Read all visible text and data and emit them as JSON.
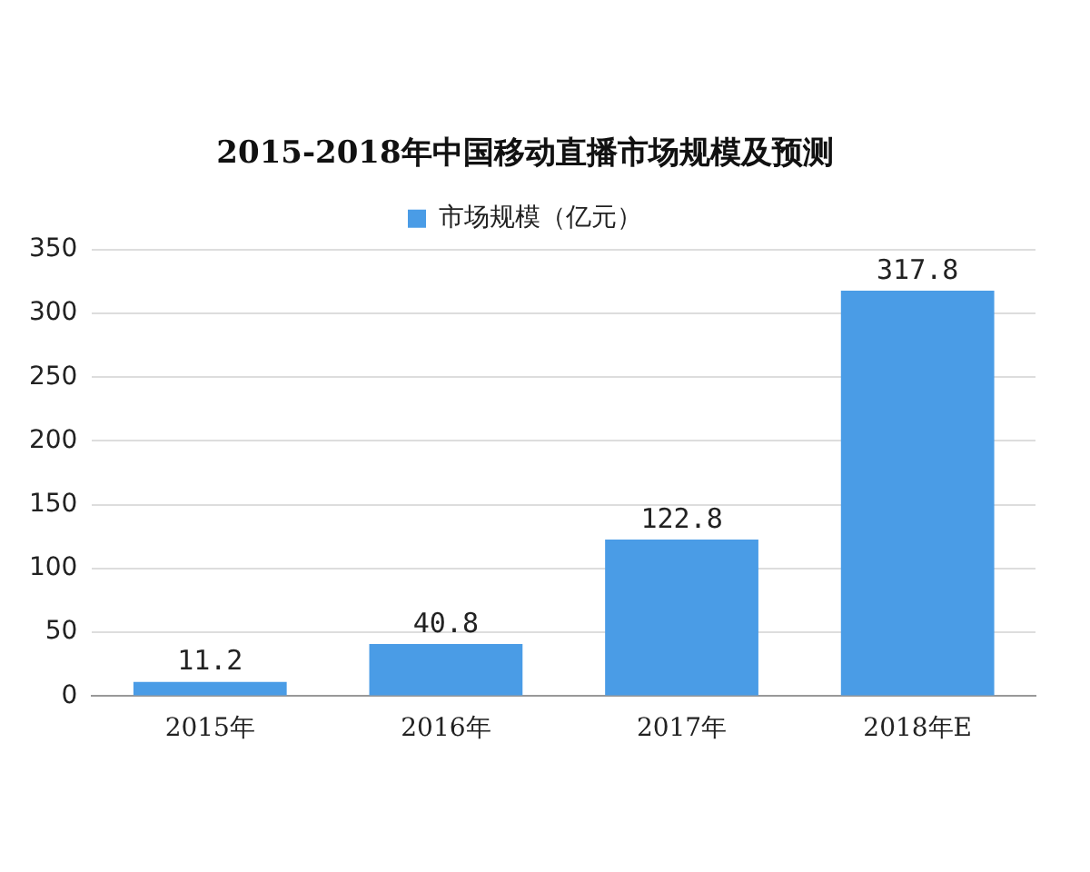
{
  "chart_data": {
    "type": "bar",
    "title": "2015-2018年中国移动直播市场规模及预测",
    "categories": [
      "2015年",
      "2016年",
      "2017年",
      "2018年E"
    ],
    "series": [
      {
        "name": "市场规模（亿元）",
        "color": "#4a9ce6",
        "values": [
          11.2,
          40.8,
          122.8,
          317.8
        ]
      }
    ],
    "ylim": [
      0,
      350
    ],
    "yticks": [
      0,
      50,
      100,
      150,
      200,
      250,
      300,
      350
    ],
    "grid": "y",
    "legend": "top",
    "data_labels": true
  }
}
